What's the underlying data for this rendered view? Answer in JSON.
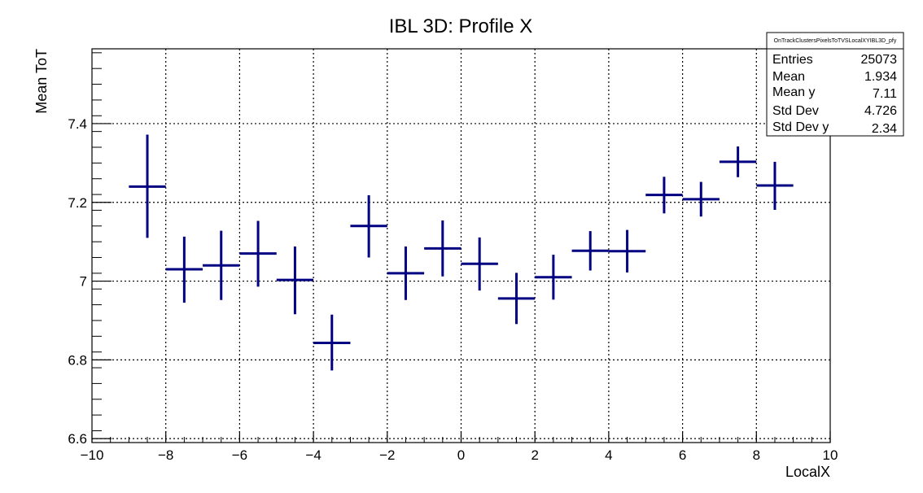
{
  "chart_data": {
    "type": "scatter",
    "title": "IBL 3D: Profile X",
    "xlabel": "LocalX",
    "ylabel": "Mean ToT",
    "xlim": [
      -10,
      10
    ],
    "ylim": [
      6.59,
      7.59
    ],
    "grid": true,
    "x_ticks": [
      -10,
      -8,
      -6,
      -4,
      -2,
      0,
      2,
      4,
      6,
      8,
      10
    ],
    "x_tick_labels": [
      "−10",
      "−8",
      "−6",
      "−4",
      "−2",
      "0",
      "2",
      "4",
      "6",
      "8",
      "10"
    ],
    "y_ticks": [
      6.6,
      6.8,
      7.0,
      7.2,
      7.4
    ],
    "y_tick_labels": [
      "6.6",
      "6.8",
      "7",
      "7.2",
      "7.4"
    ],
    "series": [
      {
        "color": "#000080",
        "x": [
          -8.5,
          -7.5,
          -6.5,
          -5.5,
          -4.5,
          -3.5,
          -2.5,
          -1.5,
          -0.5,
          0.5,
          1.5,
          2.5,
          3.5,
          4.5,
          5.5,
          6.5,
          7.5,
          8.5
        ],
        "x_err": 0.5,
        "y": [
          7.24,
          7.03,
          7.04,
          7.07,
          7.003,
          6.843,
          7.14,
          7.02,
          7.083,
          7.044,
          6.956,
          7.01,
          7.077,
          7.076,
          7.219,
          7.208,
          7.303,
          7.243
        ],
        "y_low": [
          7.11,
          6.945,
          6.952,
          6.986,
          6.916,
          6.773,
          7.06,
          6.952,
          7.012,
          6.976,
          6.891,
          6.953,
          7.027,
          7.022,
          7.172,
          7.164,
          7.264,
          7.181
        ],
        "y_high": [
          7.372,
          7.113,
          7.128,
          7.153,
          7.088,
          6.915,
          7.218,
          7.088,
          7.154,
          7.111,
          7.021,
          7.067,
          7.127,
          7.13,
          7.265,
          7.252,
          7.342,
          7.303
        ]
      }
    ],
    "stats_box": {
      "name": "OnTrackClustersPixelsToTVSLocalXYIBL3D_pfy",
      "rows": [
        {
          "label": "Entries",
          "value": "25073"
        },
        {
          "label": "Mean",
          "value": "1.934"
        },
        {
          "label": "Mean y",
          "value": "7.11"
        },
        {
          "label": "Std Dev",
          "value": "4.726"
        },
        {
          "label": "Std Dev y",
          "value": "2.34"
        }
      ],
      "placement": "top-right"
    }
  }
}
